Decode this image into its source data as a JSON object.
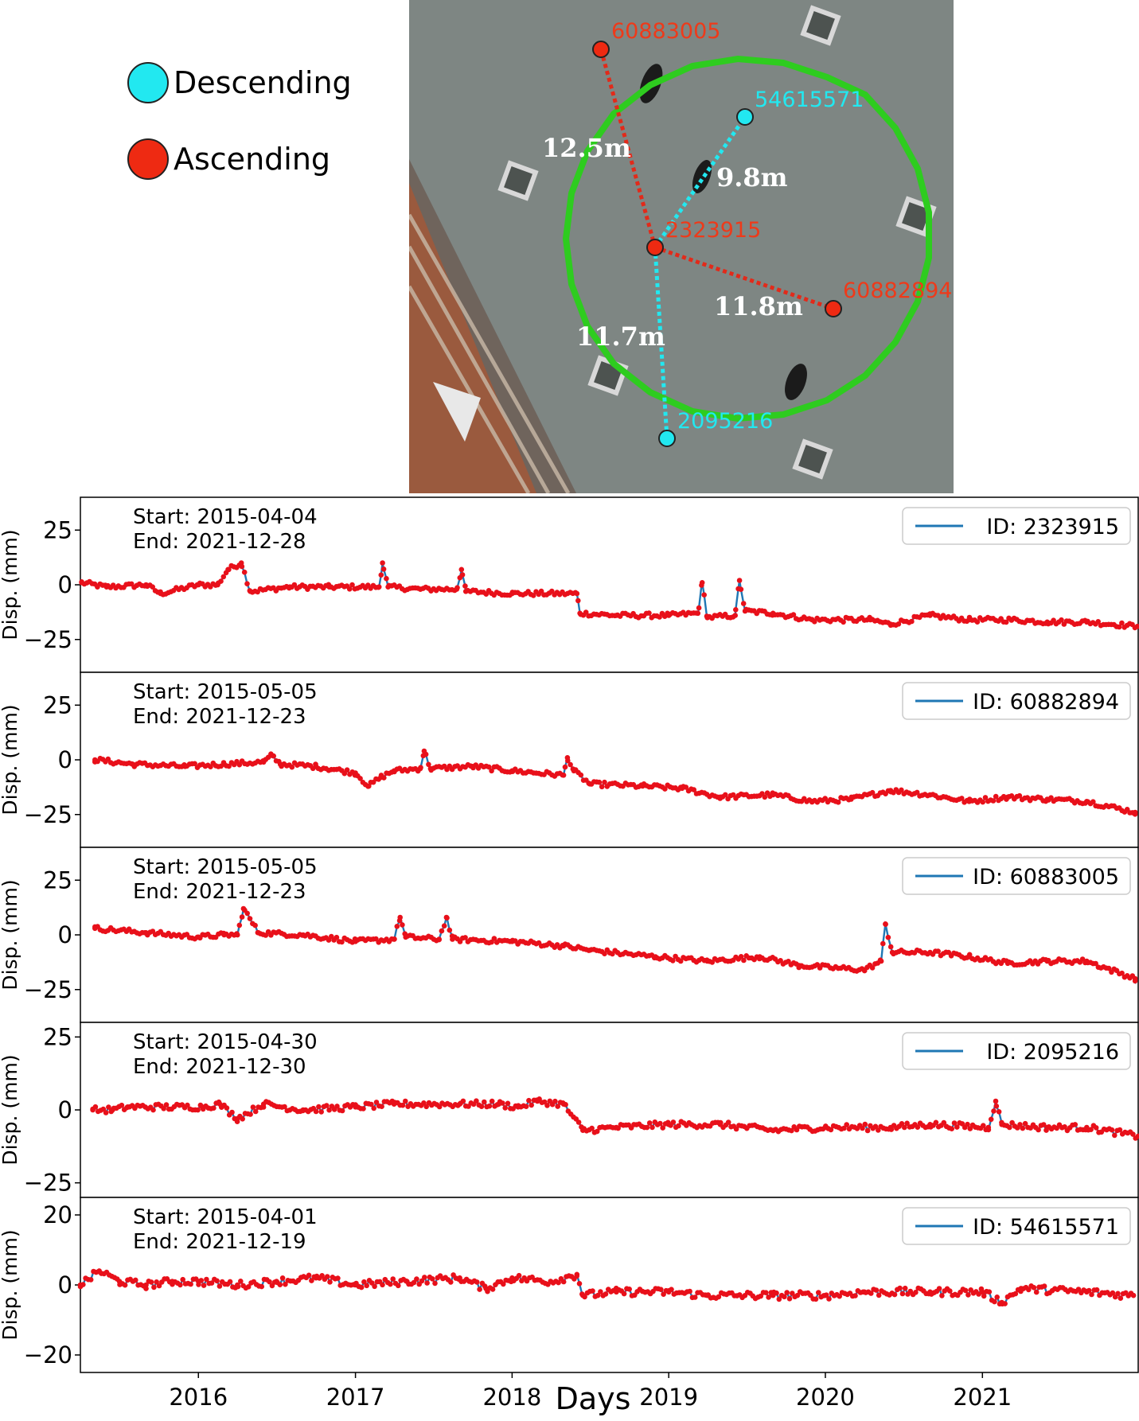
{
  "legend": {
    "items": [
      {
        "label": "Descending",
        "color": "#22e8f0"
      },
      {
        "label": "Ascending",
        "color": "#ee2a12"
      }
    ]
  },
  "map": {
    "points": [
      {
        "id": "60883005",
        "orbit": "Ascending"
      },
      {
        "id": "54615571",
        "orbit": "Descending"
      },
      {
        "id": "2323915",
        "orbit": "Ascending"
      },
      {
        "id": "60882894",
        "orbit": "Ascending"
      },
      {
        "id": "2095216",
        "orbit": "Descending"
      }
    ],
    "distances": [
      "12.5m",
      "9.8m",
      "11.8m",
      "11.7m"
    ],
    "buffer_color": "#2ecc1f"
  },
  "chart_data": {
    "type": "line",
    "xlabel": "Days",
    "ylabel": "Disp. (mm)",
    "xlim": [
      "2015-04-01",
      "2021-12-30"
    ],
    "x_ticks": [
      "2016",
      "2017",
      "2018",
      "2019",
      "2020",
      "2021"
    ],
    "line_color": "#1f77b4",
    "marker_color": "#e8101a",
    "panels": [
      {
        "id_label": "ID: 2323915",
        "start": "Start: 2015-04-04",
        "end": "End: 2021-12-28",
        "ylim": [
          -40,
          40
        ],
        "yticks": [
          25,
          0,
          -25
        ],
        "series": [
          [
            "2015-04-04",
            1
          ],
          [
            "2015-06-01",
            -1
          ],
          [
            "2015-09-01",
            0
          ],
          [
            "2015-10-05",
            -4
          ],
          [
            "2016-01-01",
            0
          ],
          [
            "2016-02-15",
            0
          ],
          [
            "2016-03-10",
            7
          ],
          [
            "2016-04-10",
            10
          ],
          [
            "2016-05-01",
            -3
          ],
          [
            "2016-08-01",
            -1
          ],
          [
            "2016-11-01",
            -1
          ],
          [
            "2017-02-25",
            -1
          ],
          [
            "2017-03-05",
            10
          ],
          [
            "2017-03-18",
            -1
          ],
          [
            "2017-06-01",
            -2
          ],
          [
            "2017-08-25",
            -2
          ],
          [
            "2017-09-05",
            7
          ],
          [
            "2017-09-15",
            -3
          ],
          [
            "2018-01-01",
            -4
          ],
          [
            "2018-06-01",
            -4
          ],
          [
            "2018-06-08",
            -13
          ],
          [
            "2018-09-01",
            -14
          ],
          [
            "2019-01-01",
            -14
          ],
          [
            "2019-03-10",
            -13
          ],
          [
            "2019-03-20",
            1
          ],
          [
            "2019-04-01",
            -15
          ],
          [
            "2019-06-05",
            -14
          ],
          [
            "2019-06-15",
            2
          ],
          [
            "2019-06-28",
            -12
          ],
          [
            "2019-09-01",
            -13
          ],
          [
            "2019-12-01",
            -16
          ],
          [
            "2020-04-15",
            -16
          ],
          [
            "2020-06-01",
            -18
          ],
          [
            "2020-09-01",
            -14
          ],
          [
            "2020-12-01",
            -16
          ],
          [
            "2021-03-10",
            -16
          ],
          [
            "2021-06-01",
            -17
          ],
          [
            "2021-09-01",
            -17
          ],
          [
            "2021-12-28",
            -19
          ]
        ]
      },
      {
        "id_label": "ID: 60882894",
        "start": "Start: 2015-05-05",
        "end": "End: 2021-12-23",
        "ylim": [
          -40,
          40
        ],
        "yticks": [
          25,
          0,
          -25
        ],
        "series": [
          [
            "2015-05-05",
            0
          ],
          [
            "2015-08-01",
            -2
          ],
          [
            "2015-12-01",
            -3
          ],
          [
            "2016-03-01",
            -2
          ],
          [
            "2016-06-01",
            -1
          ],
          [
            "2016-06-20",
            2
          ],
          [
            "2016-07-10",
            -2
          ],
          [
            "2016-10-01",
            -3
          ],
          [
            "2017-01-01",
            -6
          ],
          [
            "2017-02-01",
            -12
          ],
          [
            "2017-03-01",
            -8
          ],
          [
            "2017-04-01",
            -5
          ],
          [
            "2017-06-01",
            -4
          ],
          [
            "2017-06-10",
            4
          ],
          [
            "2017-06-25",
            -4
          ],
          [
            "2017-10-01",
            -3
          ],
          [
            "2018-01-01",
            -5
          ],
          [
            "2018-05-01",
            -7
          ],
          [
            "2018-05-10",
            1
          ],
          [
            "2018-05-25",
            -5
          ],
          [
            "2018-07-01",
            -11
          ],
          [
            "2018-11-01",
            -12
          ],
          [
            "2019-02-01",
            -13
          ],
          [
            "2019-05-01",
            -17
          ],
          [
            "2019-09-01",
            -16
          ],
          [
            "2019-12-01",
            -19
          ],
          [
            "2020-03-01",
            -18
          ],
          [
            "2020-06-01",
            -14
          ],
          [
            "2020-09-01",
            -16
          ],
          [
            "2020-12-01",
            -19
          ],
          [
            "2021-03-01",
            -17
          ],
          [
            "2021-06-01",
            -18
          ],
          [
            "2021-09-01",
            -19
          ],
          [
            "2021-12-23",
            -24
          ]
        ]
      },
      {
        "id_label": "ID: 60883005",
        "start": "Start: 2015-05-05",
        "end": "End: 2021-12-23",
        "ylim": [
          -40,
          40
        ],
        "yticks": [
          25,
          0,
          -25
        ],
        "series": [
          [
            "2015-05-05",
            3
          ],
          [
            "2015-09-01",
            1
          ],
          [
            "2016-01-01",
            -1
          ],
          [
            "2016-03-01",
            0
          ],
          [
            "2016-04-01",
            0
          ],
          [
            "2016-04-15",
            12
          ],
          [
            "2016-05-20",
            1
          ],
          [
            "2016-09-01",
            0
          ],
          [
            "2017-01-01",
            -3
          ],
          [
            "2017-04-01",
            -2
          ],
          [
            "2017-04-15",
            8
          ],
          [
            "2017-04-28",
            -1
          ],
          [
            "2017-07-15",
            -2
          ],
          [
            "2017-08-01",
            8
          ],
          [
            "2017-08-15",
            -2
          ],
          [
            "2018-01-01",
            -3
          ],
          [
            "2018-05-01",
            -5
          ],
          [
            "2018-07-01",
            -7
          ],
          [
            "2018-12-01",
            -10
          ],
          [
            "2019-04-01",
            -12
          ],
          [
            "2019-08-01",
            -10
          ],
          [
            "2019-11-01",
            -14
          ],
          [
            "2020-04-01",
            -16
          ],
          [
            "2020-05-10",
            -12
          ],
          [
            "2020-05-20",
            5
          ],
          [
            "2020-06-05",
            -8
          ],
          [
            "2020-09-01",
            -8
          ],
          [
            "2020-12-01",
            -10
          ],
          [
            "2021-03-01",
            -13
          ],
          [
            "2021-06-01",
            -12
          ],
          [
            "2021-09-01",
            -12
          ],
          [
            "2021-12-23",
            -20
          ]
        ]
      },
      {
        "id_label": "ID: 2095216",
        "start": "Start: 2015-04-30",
        "end": "End: 2021-12-30",
        "ylim": [
          -30,
          30
        ],
        "yticks": [
          25,
          0,
          -25
        ],
        "series": [
          [
            "2015-04-30",
            0
          ],
          [
            "2015-06-15",
            0
          ],
          [
            "2015-07-20",
            1
          ],
          [
            "2016-01-10",
            1
          ],
          [
            "2016-02-20",
            2
          ],
          [
            "2016-04-01",
            -3
          ],
          [
            "2016-06-01",
            2
          ],
          [
            "2016-09-01",
            0
          ],
          [
            "2017-01-01",
            1
          ],
          [
            "2017-04-01",
            2
          ],
          [
            "2017-09-01",
            2
          ],
          [
            "2017-12-01",
            2
          ],
          [
            "2018-01-15",
            1
          ],
          [
            "2018-03-01",
            3
          ],
          [
            "2018-05-01",
            2
          ],
          [
            "2018-06-15",
            -7
          ],
          [
            "2018-09-01",
            -6
          ],
          [
            "2019-01-01",
            -5
          ],
          [
            "2019-05-01",
            -5
          ],
          [
            "2019-09-01",
            -7
          ],
          [
            "2020-01-01",
            -6
          ],
          [
            "2020-06-01",
            -6
          ],
          [
            "2020-09-01",
            -5
          ],
          [
            "2021-01-15",
            -6
          ],
          [
            "2021-02-01",
            3
          ],
          [
            "2021-02-15",
            -5
          ],
          [
            "2021-06-01",
            -6
          ],
          [
            "2021-09-01",
            -6
          ],
          [
            "2021-12-30",
            -9
          ]
        ]
      },
      {
        "id_label": "ID: 54615571",
        "start": "Start: 2015-04-01",
        "end": "End: 2021-12-19",
        "ylim": [
          -25,
          25
        ],
        "yticks": [
          20,
          0,
          -20
        ],
        "series": [
          [
            "2015-04-01",
            0
          ],
          [
            "2015-05-15",
            4
          ],
          [
            "2015-07-01",
            1
          ],
          [
            "2015-09-01",
            0
          ],
          [
            "2015-11-01",
            1
          ],
          [
            "2016-01-01",
            1
          ],
          [
            "2016-04-01",
            0
          ],
          [
            "2016-07-01",
            1
          ],
          [
            "2016-10-01",
            2
          ],
          [
            "2017-01-01",
            0
          ],
          [
            "2017-05-01",
            1
          ],
          [
            "2017-09-01",
            2
          ],
          [
            "2017-11-01",
            -1
          ],
          [
            "2018-01-01",
            2
          ],
          [
            "2018-04-01",
            1
          ],
          [
            "2018-06-01",
            3
          ],
          [
            "2018-06-15",
            -3
          ],
          [
            "2018-09-01",
            -2
          ],
          [
            "2019-01-01",
            -2
          ],
          [
            "2019-04-01",
            -3
          ],
          [
            "2019-09-01",
            -3
          ],
          [
            "2020-01-01",
            -3
          ],
          [
            "2020-04-01",
            -2
          ],
          [
            "2020-09-01",
            -2
          ],
          [
            "2021-01-01",
            -2
          ],
          [
            "2021-02-15",
            -5
          ],
          [
            "2021-04-01",
            -1
          ],
          [
            "2021-09-01",
            -2
          ],
          [
            "2021-12-19",
            -3
          ]
        ]
      }
    ]
  }
}
